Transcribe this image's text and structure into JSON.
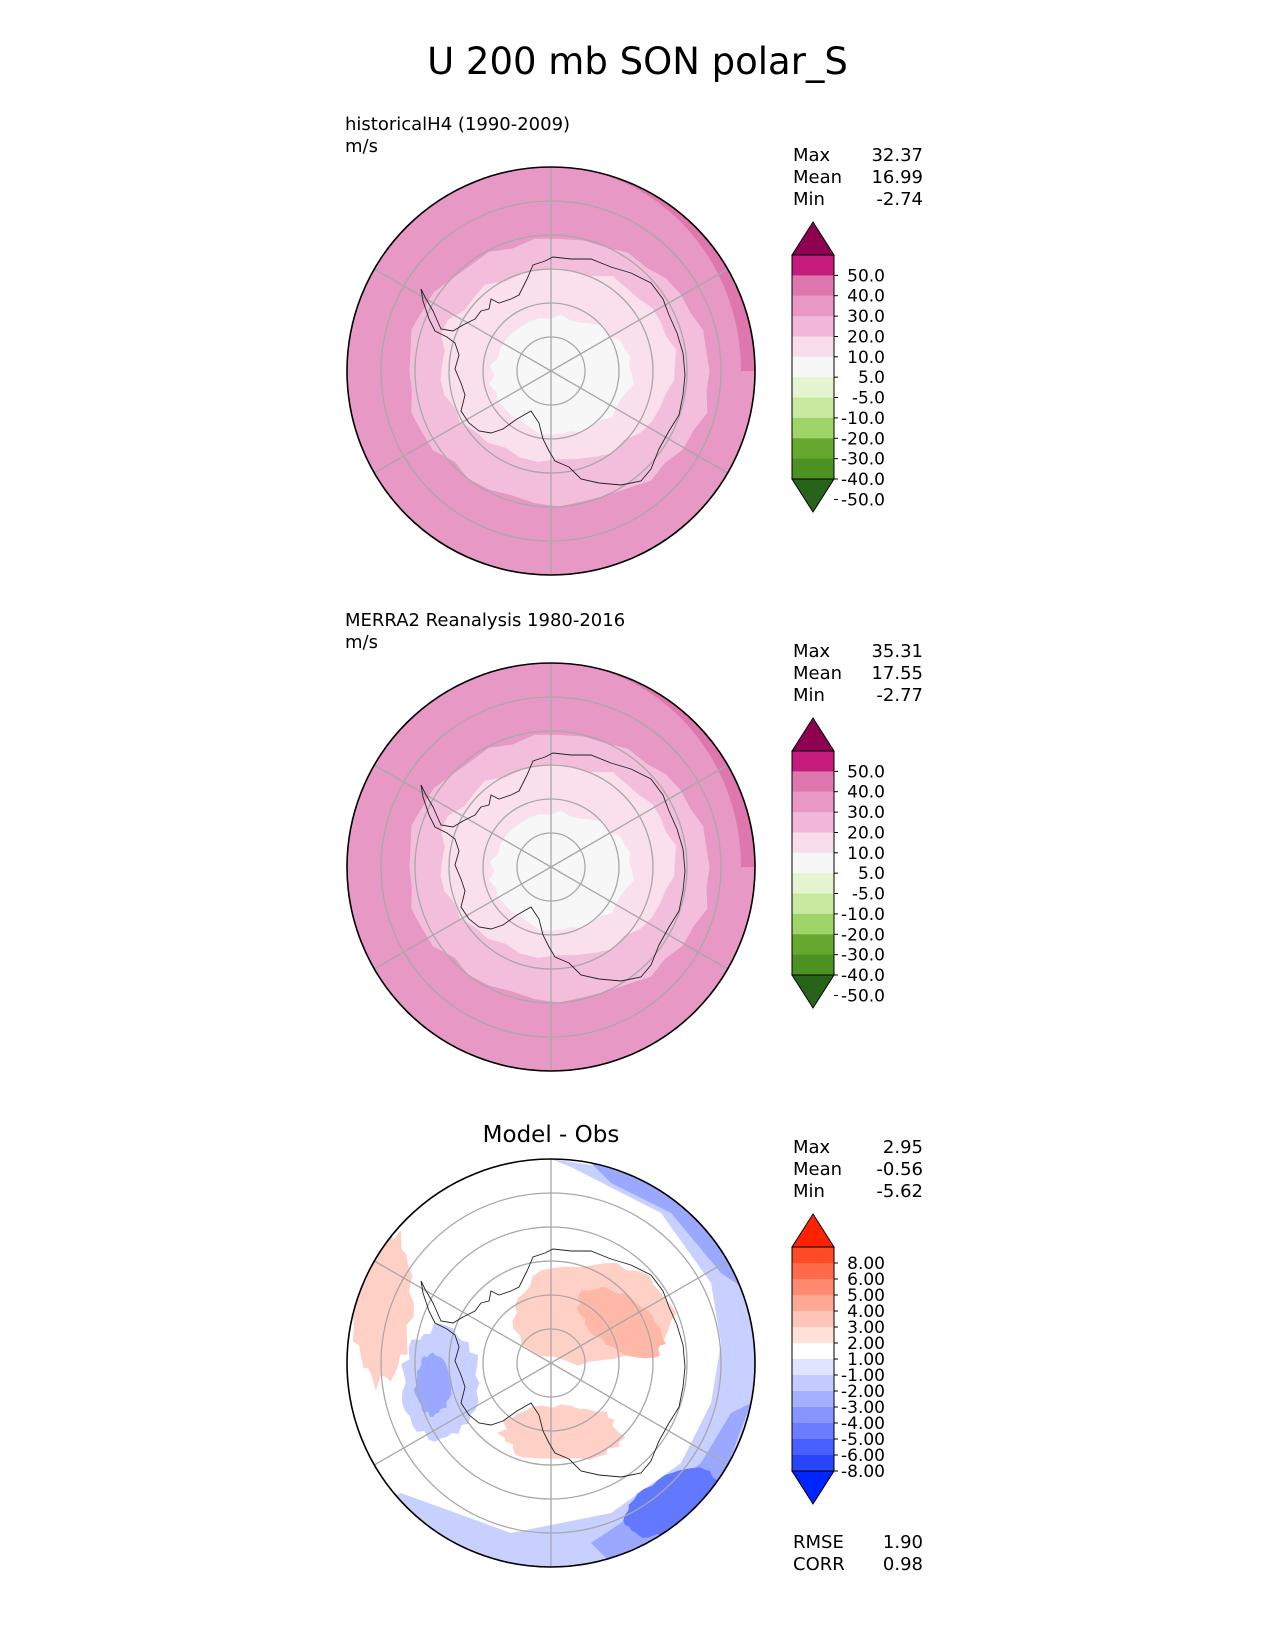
{
  "title": "U 200 mb SON polar_S",
  "panels": [
    {
      "id": "test",
      "label_line1": "historicalH4 (1990-2009)",
      "label_line2": "m/s",
      "stats": [
        {
          "name": "Max",
          "value": "32.37"
        },
        {
          "name": "Mean",
          "value": "16.99"
        },
        {
          "name": "Min",
          "value": "-2.74"
        }
      ]
    },
    {
      "id": "reference",
      "label_line1": "MERRA2 Reanalysis 1980-2016",
      "label_line2": "m/s",
      "stats": [
        {
          "name": "Max",
          "value": "35.31"
        },
        {
          "name": "Mean",
          "value": "17.55"
        },
        {
          "name": "Min",
          "value": "-2.77"
        }
      ]
    },
    {
      "id": "difference",
      "subtitle": "Model - Obs",
      "stats": [
        {
          "name": "Max",
          "value": "2.95"
        },
        {
          "name": "Mean",
          "value": "-0.56"
        },
        {
          "name": "Min",
          "value": "-5.62"
        }
      ],
      "metrics": [
        {
          "name": "RMSE",
          "value": "1.90"
        },
        {
          "name": "CORR",
          "value": "0.98"
        }
      ]
    }
  ],
  "colorbars": {
    "field": {
      "ticks": [
        "50.0",
        "40.0",
        "30.0",
        "20.0",
        "10.0",
        "5.0",
        "-5.0",
        "-10.0",
        "-20.0",
        "-30.0",
        "-40.0",
        "-50.0"
      ],
      "colors": [
        "#8e0152",
        "#c51b7d",
        "#de77ae",
        "#e998c5",
        "#f1b6da",
        "#f8ddea",
        "#f7f7f7",
        "#e6f5d0",
        "#c7e9a0",
        "#9fd46a",
        "#66a82f",
        "#4d9221",
        "#276419"
      ]
    },
    "diff": {
      "ticks": [
        "8.00",
        "6.00",
        "5.00",
        "4.00",
        "3.00",
        "2.00",
        "1.00",
        "-1.00",
        "-2.00",
        "-3.00",
        "-4.00",
        "-5.00",
        "-6.00",
        "-8.00"
      ],
      "colors": [
        "#ff2200",
        "#ff4a26",
        "#ff6a4a",
        "#ff8a70",
        "#ffa896",
        "#ffc4b8",
        "#ffe1da",
        "#ffffff",
        "#dfe4ff",
        "#c3cbff",
        "#a5b1ff",
        "#8796ff",
        "#6a7cff",
        "#4a5fff",
        "#2a43ff",
        "#0025ff"
      ]
    }
  },
  "map_colors": {
    "outer": "#e898c4",
    "ring30": "#de77ae",
    "mid": "#f3bedc",
    "inner": "#f9e0ec",
    "core": "#f7f7f7",
    "diff_pos": "#ffd0c6",
    "diff_pos2": "#ffb8a8",
    "diff_neg": "#c8d0ff",
    "diff_neg2": "#9aa8ff",
    "diff_neg3": "#6278ff",
    "diff_neg4": "#4a62ff"
  }
}
